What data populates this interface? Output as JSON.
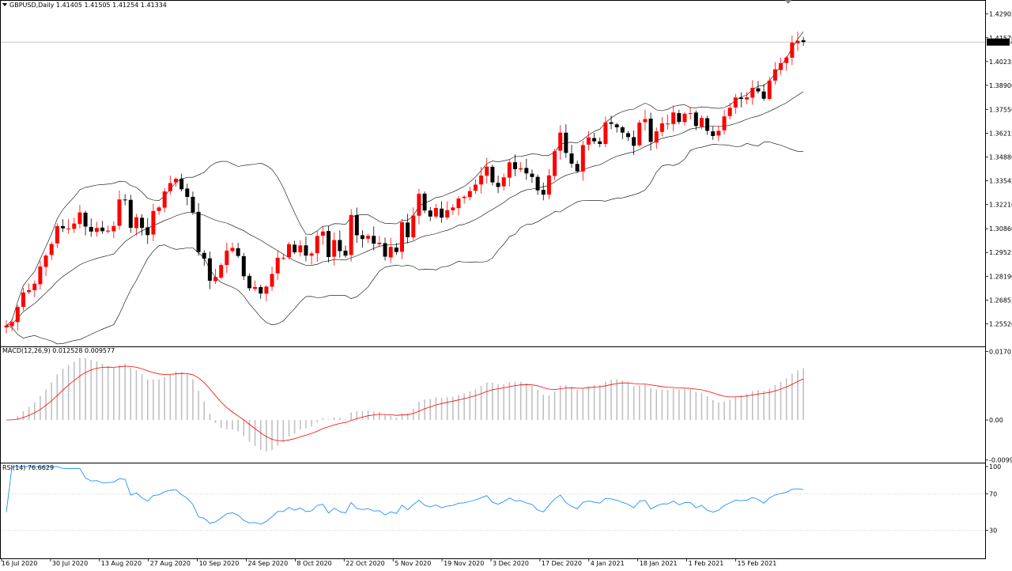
{
  "colors": {
    "background": "#ffffff",
    "frame": "#000000",
    "bull_candle": "#ff0000",
    "bear_candle": "#000000",
    "bollinger": "#000000",
    "macd_hist": "#c0c0c0",
    "macd_signal": "#ff0000",
    "rsi_line": "#1e90ff",
    "rsi_levels": "#c0c0c0",
    "price_label_bg": "#000000",
    "price_label_text": "#ffffff"
  },
  "icons": {
    "symbol_menu": "triangle-down-icon",
    "autoscroll_marker": "triangle-down-icon"
  },
  "chart_data": [
    {
      "type": "candlestick",
      "title": "GBPUSD,Daily  1.41405 1.41505 1.41254 1.41334",
      "last_price": "1.41334",
      "ylim": [
        1.243,
        1.436
      ],
      "yticks": [
        "1.42905",
        "1.41570",
        "1.40235",
        "1.38900",
        "1.37550",
        "1.36215",
        "1.34880",
        "1.33545",
        "1.32210",
        "1.30860",
        "1.29525",
        "1.28190",
        "1.26855",
        "1.25520"
      ],
      "xticks": [
        "16 Jul 2020",
        "30 Jul 2020",
        "13 Aug 2020",
        "27 Aug 2020",
        "10 Sep 2020",
        "24 Sep 2020",
        "8 Oct 2020",
        "22 Oct 2020",
        "5 Nov 2020",
        "19 Nov 2020",
        "3 Dec 2020",
        "17 Dec 2020",
        "4 Jan 2021",
        "18 Jan 2021",
        "1 Feb 2021",
        "15 Feb 2021"
      ],
      "close": [
        1.2542,
        1.2562,
        1.2647,
        1.2728,
        1.2741,
        1.2777,
        1.2874,
        1.2935,
        1.3,
        1.31,
        1.3088,
        1.3087,
        1.3115,
        1.3177,
        1.3098,
        1.307,
        1.309,
        1.3072,
        1.3075,
        1.3101,
        1.325,
        1.3245,
        1.3091,
        1.315,
        1.3091,
        1.305,
        1.3185,
        1.3205,
        1.3295,
        1.3342,
        1.3366,
        1.3307,
        1.3264,
        1.3178,
        1.2954,
        1.2918,
        1.2794,
        1.2815,
        1.2882,
        1.2963,
        1.2978,
        1.2933,
        1.2819,
        1.2752,
        1.2759,
        1.2722,
        1.2761,
        1.2832,
        1.2923,
        1.2922,
        1.2999,
        1.2953,
        1.2992,
        1.2935,
        1.2947,
        1.3045,
        1.307,
        1.2927,
        1.3022,
        1.296,
        1.2935,
        1.3163,
        1.3049,
        1.3028,
        1.3046,
        1.3002,
        1.3007,
        1.2929,
        1.2984,
        1.2955,
        1.3122,
        1.3038,
        1.316,
        1.3282,
        1.3188,
        1.3154,
        1.3202,
        1.3148,
        1.319,
        1.3205,
        1.3255,
        1.3265,
        1.3297,
        1.3333,
        1.3384,
        1.3434,
        1.3346,
        1.332,
        1.3374,
        1.3458,
        1.342,
        1.3425,
        1.3396,
        1.3376,
        1.3301,
        1.3277,
        1.3385,
        1.352,
        1.3625,
        1.3511,
        1.3451,
        1.3408,
        1.3555,
        1.3598,
        1.3576,
        1.3561,
        1.3682,
        1.3674,
        1.3655,
        1.3625,
        1.36,
        1.3551,
        1.3681,
        1.3701,
        1.3573,
        1.3632,
        1.3677,
        1.3676,
        1.3738,
        1.3685,
        1.3731,
        1.3734,
        1.3662,
        1.3707,
        1.3635,
        1.3606,
        1.3635,
        1.3716,
        1.3764,
        1.3822,
        1.3814,
        1.3823,
        1.3876,
        1.3856,
        1.3815,
        1.3917,
        1.398,
        1.4015,
        1.4046,
        1.413,
        1.414,
        1.4133
      ],
      "bollinger": {
        "period": 20,
        "deviation": 2
      },
      "series": [
        {
          "name": "GBPUSD,Daily"
        }
      ]
    },
    {
      "type": "bar",
      "title": "MACD(12,26,9) 0.012528 0.009577",
      "ylim": [
        -0.0104,
        0.0177
      ],
      "yticks": [
        "0.017015",
        "0.00",
        "-0.009942"
      ],
      "series": [
        {
          "name": "MACD"
        },
        {
          "name": "Signal"
        }
      ]
    },
    {
      "type": "line",
      "title": "RSI(14) 76.6629",
      "ylim": [
        0,
        100
      ],
      "levels": [
        30,
        70
      ],
      "yticks": [
        "100",
        "70",
        "30",
        "0"
      ],
      "series": [
        {
          "name": "RSI(14)"
        }
      ]
    }
  ]
}
